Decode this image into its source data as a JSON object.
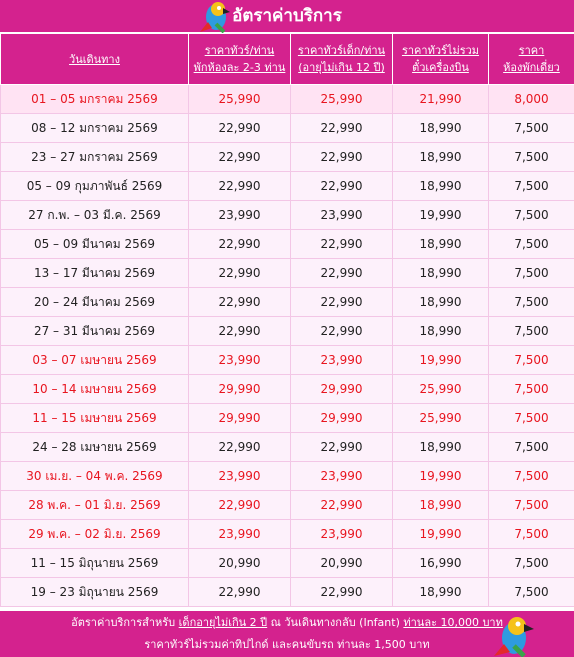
{
  "header": {
    "title": "อัตราค่าบริการ"
  },
  "table": {
    "columns": [
      [
        "วันเดินทาง"
      ],
      [
        "ราคาทัวร์/ท่าน",
        "พักห้องละ 2-3 ท่าน"
      ],
      [
        "ราคาทัวร์เด็ก/ท่าน",
        "(อายุไม่เกิน 12 ปี)"
      ],
      [
        "ราคาทัวร์ไม่รวม",
        "ตั๋วเครื่องบิน"
      ],
      [
        "ราคา",
        "ห้องพักเดี่ยว"
      ]
    ],
    "rows": [
      {
        "cells": [
          "01 – 05 มกราคม 2569",
          "25,990",
          "25,990",
          "21,990",
          "8,000"
        ],
        "color": "#e8151f",
        "background": "#ffe3f3"
      },
      {
        "cells": [
          "08 – 12 มกราคม 2569",
          "22,990",
          "22,990",
          "18,990",
          "7,500"
        ],
        "color": "#222222",
        "background": "#fdf1fb"
      },
      {
        "cells": [
          "23 – 27 มกราคม 2569",
          "22,990",
          "22,990",
          "18,990",
          "7,500"
        ],
        "color": "#222222",
        "background": "#fdf1fb"
      },
      {
        "cells": [
          "05 – 09 กุมภาพันธ์ 2569",
          "22,990",
          "22,990",
          "18,990",
          "7,500"
        ],
        "color": "#222222",
        "background": "#fdf1fb"
      },
      {
        "cells": [
          "27 ก.พ. – 03 มี.ค. 2569",
          "23,990",
          "23,990",
          "19,990",
          "7,500"
        ],
        "color": "#222222",
        "background": "#fdf1fb"
      },
      {
        "cells": [
          "05 – 09 มีนาคม 2569",
          "22,990",
          "22,990",
          "18,990",
          "7,500"
        ],
        "color": "#222222",
        "background": "#fdf1fb"
      },
      {
        "cells": [
          "13 – 17 มีนาคม 2569",
          "22,990",
          "22,990",
          "18,990",
          "7,500"
        ],
        "color": "#222222",
        "background": "#fdf1fb"
      },
      {
        "cells": [
          "20 – 24 มีนาคม 2569",
          "22,990",
          "22,990",
          "18,990",
          "7,500"
        ],
        "color": "#222222",
        "background": "#fdf1fb"
      },
      {
        "cells": [
          "27 – 31 มีนาคม 2569",
          "22,990",
          "22,990",
          "18,990",
          "7,500"
        ],
        "color": "#222222",
        "background": "#fdf1fb"
      },
      {
        "cells": [
          "03 – 07 เมษายน 2569",
          "23,990",
          "23,990",
          "19,990",
          "7,500"
        ],
        "color": "#e8151f",
        "background": "#fdf1fb"
      },
      {
        "cells": [
          "10 – 14 เมษายน 2569",
          "29,990",
          "29,990",
          "25,990",
          "7,500"
        ],
        "color": "#e8151f",
        "background": "#fdf1fb"
      },
      {
        "cells": [
          "11 – 15 เมษายน 2569",
          "29,990",
          "29,990",
          "25,990",
          "7,500"
        ],
        "color": "#e8151f",
        "background": "#fdf1fb"
      },
      {
        "cells": [
          "24 – 28 เมษายน 2569",
          "22,990",
          "22,990",
          "18,990",
          "7,500"
        ],
        "color": "#222222",
        "background": "#fdf1fb"
      },
      {
        "cells": [
          "30 เม.ย. – 04 พ.ค. 2569",
          "23,990",
          "23,990",
          "19,990",
          "7,500"
        ],
        "color": "#e8151f",
        "background": "#fdf1fb"
      },
      {
        "cells": [
          "28 พ.ค. – 01 มิ.ย. 2569",
          "22,990",
          "22,990",
          "18,990",
          "7,500"
        ],
        "color": "#e8151f",
        "background": "#fdf1fb"
      },
      {
        "cells": [
          "29 พ.ค. – 02 มิ.ย. 2569",
          "23,990",
          "23,990",
          "19,990",
          "7,500"
        ],
        "color": "#e8151f",
        "background": "#fdf1fb"
      },
      {
        "cells": [
          "11 – 15 มิถุนายน 2569",
          "20,990",
          "20,990",
          "16,990",
          "7,500"
        ],
        "color": "#222222",
        "background": "#fdf1fb"
      },
      {
        "cells": [
          "19 – 23 มิถุนายน 2569",
          "22,990",
          "22,990",
          "18,990",
          "7,500"
        ],
        "color": "#222222",
        "background": "#fdf1fb"
      }
    ]
  },
  "footer": {
    "lines": [
      [
        {
          "text": "อัตราค่าบริการสำหรับ ",
          "underline": false
        },
        {
          "text": "เด็กอายุไม่เกิน 2 ปี",
          "underline": true
        },
        {
          "text": " ณ วันเดินทางกลับ (Infant) ",
          "underline": false
        },
        {
          "text": "ท่านละ 10,000 บาท",
          "underline": true
        }
      ],
      [
        {
          "text": "ราคาทัวร์ไม่รวมค่าทิปไกด์ และคนขับรถ ท่านละ 1,500 บาท",
          "underline": false
        }
      ]
    ]
  }
}
